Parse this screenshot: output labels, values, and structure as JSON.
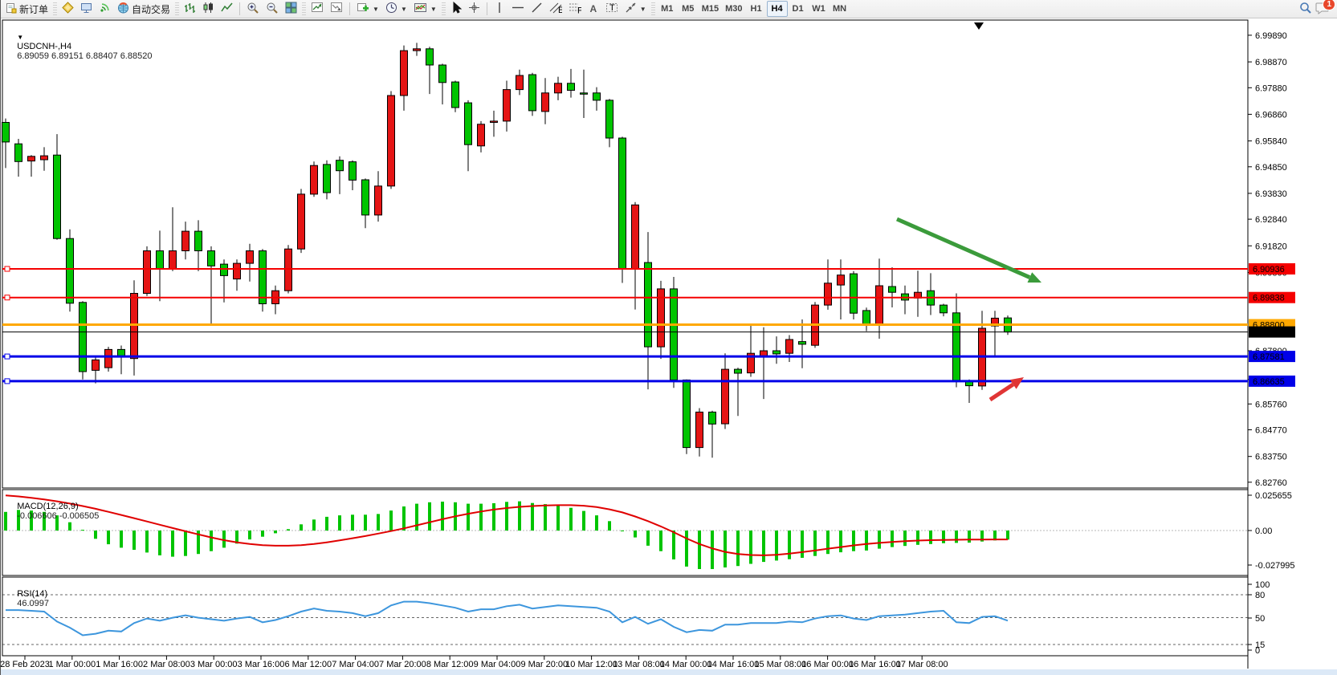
{
  "toolbar": {
    "new_order_label": "新订单",
    "autotrading_label": "自动交易",
    "timeframes": [
      "M1",
      "M5",
      "M15",
      "M30",
      "H1",
      "H4",
      "D1",
      "W1",
      "MN"
    ],
    "active_timeframe": "H4",
    "notification_badge": "1",
    "icon_names": [
      "new-order-icon",
      "symbols-icon",
      "market-watch-icon",
      "signal-icon",
      "globe-icon",
      "ohlc-bars-icon",
      "candlestick-icon",
      "line-chart-icon",
      "zoom-in-icon",
      "zoom-out-icon",
      "tile-windows-icon",
      "indicator-window-icon",
      "arrange-icon",
      "add-indicator-icon",
      "period-clock-icon",
      "template-icon",
      "cursor-icon",
      "crosshair-icon",
      "vertical-line-icon",
      "horizontal-line-icon",
      "trendline-icon",
      "channel-icon",
      "fibonacci-icon",
      "text-icon",
      "text-label-icon",
      "arrows-tool-icon",
      "search-icon",
      "chat-icon"
    ],
    "text_tool_letter": "A",
    "label_tool_letter": "T",
    "channel_tool_letter": "E",
    "fibo_tool_letter": "F"
  },
  "chart_data": {
    "type": "candlestick",
    "symbol_header": "USDCNH-,H4",
    "header_ohlc": "6.89059 6.89151 6.88407 6.88520",
    "bull_color": "#e51515",
    "bear_color": "#00c400",
    "price_axis": {
      "ticks": [
        "6.99890",
        "6.98870",
        "6.97880",
        "6.96860",
        "6.95840",
        "6.94850",
        "6.93830",
        "6.92840",
        "6.91820",
        "6.90800",
        "6.87800",
        "6.86700",
        "6.85760",
        "6.84770",
        "6.83750",
        "6.82760"
      ],
      "top_price": 7.0038,
      "bottom_price": 6.8254
    },
    "time_axis": [
      "28 Feb 2023",
      "1 Mar 00:00",
      "1 Mar 16:00",
      "2 Mar 08:00",
      "3 Mar 00:00",
      "3 Mar 16:00",
      "6 Mar 12:00",
      "7 Mar 04:00",
      "7 Mar 20:00",
      "8 Mar 12:00",
      "9 Mar 04:00",
      "9 Mar 20:00",
      "10 Mar 12:00",
      "13 Mar 08:00",
      "14 Mar 00:00",
      "14 Mar 16:00",
      "15 Mar 08:00",
      "16 Mar 00:00",
      "16 Mar 16:00",
      "17 Mar 08:00"
    ],
    "hlines": [
      {
        "price": "6.90936",
        "value": 6.90936,
        "color": "#f50000",
        "width": 2,
        "handle": true
      },
      {
        "price": "6.89838",
        "value": 6.89838,
        "color": "#f50000",
        "width": 2,
        "handle": true
      },
      {
        "price": "6.88800",
        "value": 6.888,
        "color": "#ffa800",
        "width": 3,
        "handle": false
      },
      {
        "price": "6.88520",
        "value": 6.8852,
        "color": "#000000",
        "width": 1,
        "handle": false
      },
      {
        "price": "6.87581",
        "value": 6.87581,
        "color": "#0000e8",
        "width": 3,
        "handle": true
      },
      {
        "price": "6.86635",
        "value": 6.86635,
        "color": "#0000e8",
        "width": 3,
        "handle": true
      }
    ],
    "candles": [
      [
        6.9655,
        6.967,
        6.948,
        6.958
      ],
      [
        6.9573,
        6.9592,
        6.9447,
        6.9505
      ],
      [
        6.9507,
        6.953,
        6.9447,
        6.9525
      ],
      [
        6.9512,
        6.956,
        6.947,
        6.9527
      ],
      [
        6.953,
        6.961,
        6.9205,
        6.921
      ],
      [
        6.921,
        6.9245,
        6.893,
        6.8962
      ],
      [
        6.8965,
        6.897,
        6.867,
        6.87
      ],
      [
        6.8705,
        6.876,
        6.8655,
        6.8745
      ],
      [
        6.8715,
        6.8795,
        6.87,
        6.8785
      ],
      [
        6.8785,
        6.88,
        6.869,
        6.876
      ],
      [
        6.875,
        6.905,
        6.8685,
        6.9
      ],
      [
        6.9,
        6.918,
        6.899,
        6.9163
      ],
      [
        6.9163,
        6.924,
        6.897,
        6.9095
      ],
      [
        6.9095,
        6.933,
        6.9085,
        6.9163
      ],
      [
        6.9163,
        6.9275,
        6.913,
        6.9238
      ],
      [
        6.9238,
        6.928,
        6.9085,
        6.9163
      ],
      [
        6.9163,
        6.918,
        6.888,
        6.9105
      ],
      [
        6.9112,
        6.913,
        6.8965,
        6.9068
      ],
      [
        6.9055,
        6.913,
        6.901,
        6.9115
      ],
      [
        6.9115,
        6.919,
        6.9045,
        6.9163
      ],
      [
        6.9163,
        6.917,
        6.893,
        6.896
      ],
      [
        6.896,
        6.903,
        6.892,
        6.901
      ],
      [
        6.901,
        6.9185,
        6.9,
        6.917
      ],
      [
        6.917,
        6.94,
        6.9155,
        6.938
      ],
      [
        6.938,
        6.9505,
        6.937,
        6.949
      ],
      [
        6.9494,
        6.951,
        6.936,
        6.9386
      ],
      [
        6.951,
        6.9525,
        6.938,
        6.947
      ],
      [
        6.9504,
        6.951,
        6.9395,
        6.9434
      ],
      [
        6.9435,
        6.944,
        6.925,
        6.93
      ],
      [
        6.93,
        6.9468,
        6.9275,
        6.9411
      ],
      [
        6.9411,
        6.9775,
        6.94,
        6.9758
      ],
      [
        6.9758,
        6.995,
        6.97,
        6.993
      ],
      [
        6.993,
        6.996,
        6.991,
        6.9937
      ],
      [
        6.9937,
        6.9945,
        6.9764,
        6.9875
      ],
      [
        6.9875,
        6.988,
        6.9724,
        6.9808
      ],
      [
        6.981,
        6.9815,
        6.9694,
        6.9712
      ],
      [
        6.973,
        6.974,
        6.9468,
        6.957
      ],
      [
        6.9565,
        6.966,
        6.954,
        6.9648
      ],
      [
        6.9655,
        6.97,
        6.96,
        6.966
      ],
      [
        6.966,
        6.9815,
        6.962,
        6.9781
      ],
      [
        6.9781,
        6.9857,
        6.976,
        6.9835
      ],
      [
        6.9838,
        6.9845,
        6.968,
        6.97
      ],
      [
        6.9697,
        6.9825,
        6.9648,
        6.9768
      ],
      [
        6.9768,
        6.983,
        6.974,
        6.9805
      ],
      [
        6.9805,
        6.986,
        6.975,
        6.9778
      ],
      [
        6.9768,
        6.9857,
        6.9672,
        6.9765
      ],
      [
        6.9768,
        6.979,
        6.97,
        6.974
      ],
      [
        6.974,
        6.9745,
        6.956,
        6.9595
      ],
      [
        6.9595,
        6.96,
        6.904,
        6.9094
      ],
      [
        6.9094,
        6.935,
        6.8938,
        6.9339
      ],
      [
        6.9118,
        6.9235,
        6.8632,
        6.8795
      ],
      [
        6.8795,
        6.9048,
        6.8749,
        6.9017
      ],
      [
        6.9017,
        6.9063,
        6.8638,
        6.8668
      ],
      [
        6.8668,
        6.867,
        6.8384,
        6.8409
      ],
      [
        6.8409,
        6.856,
        6.8375,
        6.8545
      ],
      [
        6.8545,
        6.855,
        6.837,
        6.8499
      ],
      [
        6.85,
        6.877,
        6.848,
        6.8709
      ],
      [
        6.8709,
        6.8715,
        6.853,
        6.8694
      ],
      [
        6.8695,
        6.888,
        6.868,
        6.877
      ],
      [
        6.8758,
        6.887,
        6.8595,
        6.878
      ],
      [
        6.878,
        6.8835,
        6.873,
        6.8768
      ],
      [
        6.877,
        6.884,
        6.8737,
        6.8823
      ],
      [
        6.8815,
        6.89,
        6.8713,
        6.8805
      ],
      [
        6.8801,
        6.8967,
        6.8791,
        6.8955
      ],
      [
        6.8955,
        6.913,
        6.8937,
        6.9039
      ],
      [
        6.9032,
        6.913,
        6.89,
        6.907
      ],
      [
        6.9075,
        6.9085,
        6.89,
        6.8924
      ],
      [
        6.8934,
        6.8945,
        6.8855,
        6.888
      ],
      [
        6.888,
        6.9133,
        6.8826,
        6.9029
      ],
      [
        6.9026,
        6.91,
        6.8946,
        6.9004
      ],
      [
        6.8998,
        6.903,
        6.892,
        6.8974
      ],
      [
        6.8982,
        6.9087,
        6.891,
        6.9004
      ],
      [
        6.901,
        6.9077,
        6.8917,
        6.8955
      ],
      [
        6.8955,
        6.896,
        6.8912,
        6.8925
      ],
      [
        6.8925,
        6.9,
        6.864,
        6.8663
      ],
      [
        6.8663,
        6.867,
        6.858,
        6.8646
      ],
      [
        6.8645,
        6.8933,
        6.863,
        6.8866
      ],
      [
        6.8875,
        6.8933,
        6.876,
        6.8905
      ],
      [
        6.89059,
        6.89151,
        6.88407,
        6.8852
      ]
    ],
    "macd": {
      "label": "MACD(12,26,9)",
      "values_text": "-0.006606 -0.006505",
      "axis": [
        "0.025655",
        "0.00",
        "-0.027995"
      ],
      "hist_color": "#00c400",
      "signal_color": "#e00000",
      "histogram": [
        0.0135,
        0.015,
        0.0145,
        0.0135,
        0.011,
        0.006,
        0.0005,
        -0.006,
        -0.01,
        -0.0125,
        -0.014,
        -0.016,
        -0.018,
        -0.019,
        -0.0185,
        -0.017,
        -0.015,
        -0.0125,
        -0.0095,
        -0.0065,
        -0.0045,
        -0.002,
        0.001,
        0.0045,
        0.008,
        0.01,
        0.011,
        0.0115,
        0.0115,
        0.012,
        0.0145,
        0.0175,
        0.0195,
        0.0205,
        0.021,
        0.0205,
        0.0195,
        0.0195,
        0.0198,
        0.0208,
        0.0212,
        0.02,
        0.0192,
        0.0182,
        0.0165,
        0.0142,
        0.011,
        0.0068,
        -0.0005,
        -0.005,
        -0.011,
        -0.015,
        -0.021,
        -0.0262,
        -0.028,
        -0.028,
        -0.0268,
        -0.0258,
        -0.0242,
        -0.0228,
        -0.0218,
        -0.0208,
        -0.0198,
        -0.0185,
        -0.017,
        -0.0158,
        -0.015,
        -0.0145,
        -0.0132,
        -0.012,
        -0.0112,
        -0.0104,
        -0.0098,
        -0.0092,
        -0.009,
        -0.0088,
        -0.008,
        -0.0072,
        -0.0066
      ],
      "signal": [
        0.0255,
        0.0248,
        0.0238,
        0.0226,
        0.0212,
        0.0196,
        0.0178,
        0.0158,
        0.0136,
        0.0113,
        0.009,
        0.0066,
        0.0042,
        0.0018,
        -0.0005,
        -0.0028,
        -0.005,
        -0.007,
        -0.0086,
        -0.0098,
        -0.0106,
        -0.011,
        -0.011,
        -0.0106,
        -0.0098,
        -0.0086,
        -0.0072,
        -0.0056,
        -0.004,
        -0.0022,
        -0.0004,
        0.0016,
        0.0038,
        0.006,
        0.0082,
        0.0103,
        0.0122,
        0.0138,
        0.0152,
        0.0163,
        0.0172,
        0.0178,
        0.0182,
        0.0184,
        0.0184,
        0.018,
        0.017,
        0.0154,
        0.0132,
        0.0102,
        0.0068,
        0.003,
        -0.0012,
        -0.0058,
        -0.0098,
        -0.013,
        -0.0155,
        -0.017,
        -0.0178,
        -0.018,
        -0.0176,
        -0.0168,
        -0.0157,
        -0.0145,
        -0.0132,
        -0.012,
        -0.0108,
        -0.0098,
        -0.009,
        -0.0083,
        -0.0077,
        -0.0073,
        -0.007,
        -0.0068,
        -0.0067,
        -0.0066,
        -0.0066,
        -0.0065,
        -0.0065
      ]
    },
    "rsi": {
      "label": "RSI(14)",
      "value_text": "46.0997",
      "axis": [
        "100",
        "80",
        "50",
        "15",
        "0"
      ],
      "levels": [
        80,
        50,
        15
      ],
      "color": "#3d96dd",
      "series": [
        60,
        60,
        59,
        58,
        45,
        37,
        27,
        29,
        33,
        32,
        43,
        49,
        46,
        50,
        53,
        50,
        48,
        46,
        49,
        51,
        44,
        47,
        52,
        58,
        62,
        59,
        58,
        56,
        52,
        56,
        66,
        71,
        71,
        69,
        66,
        63,
        58,
        61,
        61,
        65,
        67,
        62,
        64,
        66,
        65,
        64,
        63,
        58,
        44,
        51,
        42,
        48,
        38,
        31,
        34,
        33,
        41,
        41,
        43,
        43,
        43,
        45,
        44,
        49,
        52,
        53,
        49,
        47,
        52,
        53,
        54,
        56,
        58,
        59,
        44,
        43,
        51,
        52,
        46.1
      ]
    },
    "annotations": [
      {
        "type": "arrow",
        "name": "green-down-arrow",
        "from": [
          1116,
          273
        ],
        "to": [
          1296,
          352
        ],
        "color": "#3b9b3b"
      },
      {
        "type": "arrow",
        "name": "red-up-arrow",
        "from": [
          1232,
          498
        ],
        "to": [
          1274,
          470
        ],
        "color": "#e03535"
      }
    ]
  }
}
